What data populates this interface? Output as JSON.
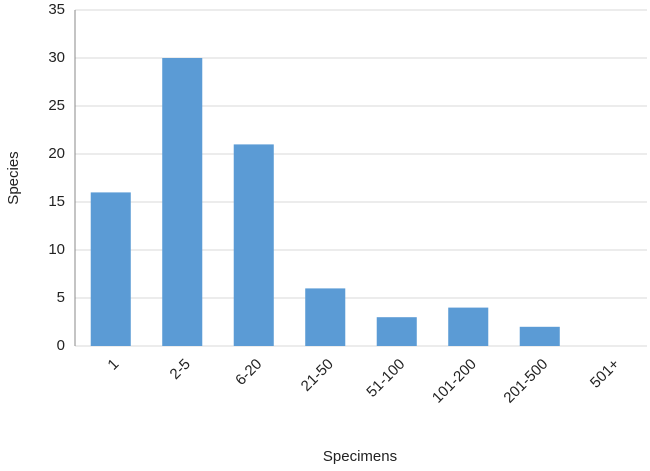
{
  "chart_data": {
    "type": "bar",
    "x_label": "Specimens",
    "y_label": "Species",
    "categories": [
      "1",
      "2-5",
      "6-20",
      "21-50",
      "51-100",
      "101-200",
      "201-500",
      "501+"
    ],
    "values": [
      16,
      30,
      21,
      6,
      3,
      4,
      2,
      0
    ],
    "color": "#5b9bd5",
    "ylim": [
      0,
      35
    ],
    "yticks": [
      0,
      5,
      10,
      15,
      20,
      25,
      30,
      35
    ],
    "grid": true
  }
}
